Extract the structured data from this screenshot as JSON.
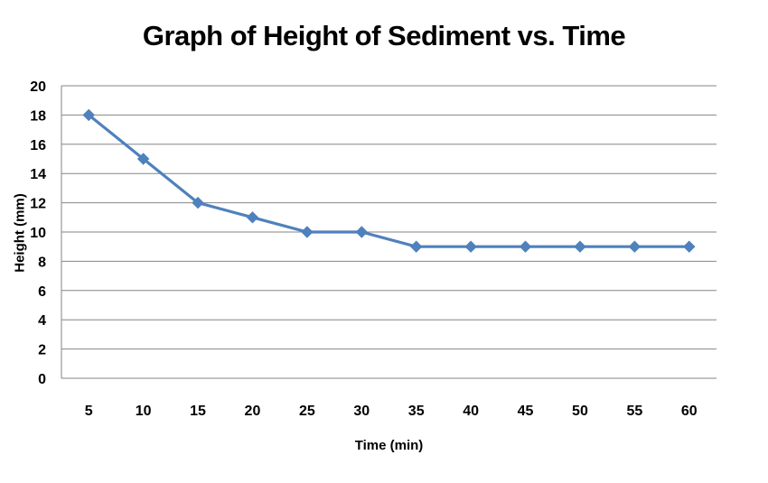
{
  "chart_data": {
    "type": "line",
    "title": "Graph of Height of Sediment vs. Time",
    "xlabel": "Time (min)",
    "ylabel": "Height (mm)",
    "categories": [
      "5",
      "10",
      "15",
      "20",
      "25",
      "30",
      "35",
      "40",
      "45",
      "50",
      "55",
      "60"
    ],
    "series": [
      {
        "values": [
          18,
          15,
          12,
          11,
          10,
          10,
          9,
          9,
          9,
          9,
          9,
          9
        ]
      }
    ],
    "ylim": [
      0,
      20
    ],
    "yticks": [
      0,
      2,
      4,
      6,
      8,
      10,
      12,
      14,
      16,
      18,
      20
    ],
    "grid": true,
    "legend": "none",
    "colors": {
      "series": "#4F81BD",
      "grid": "#868686"
    }
  }
}
